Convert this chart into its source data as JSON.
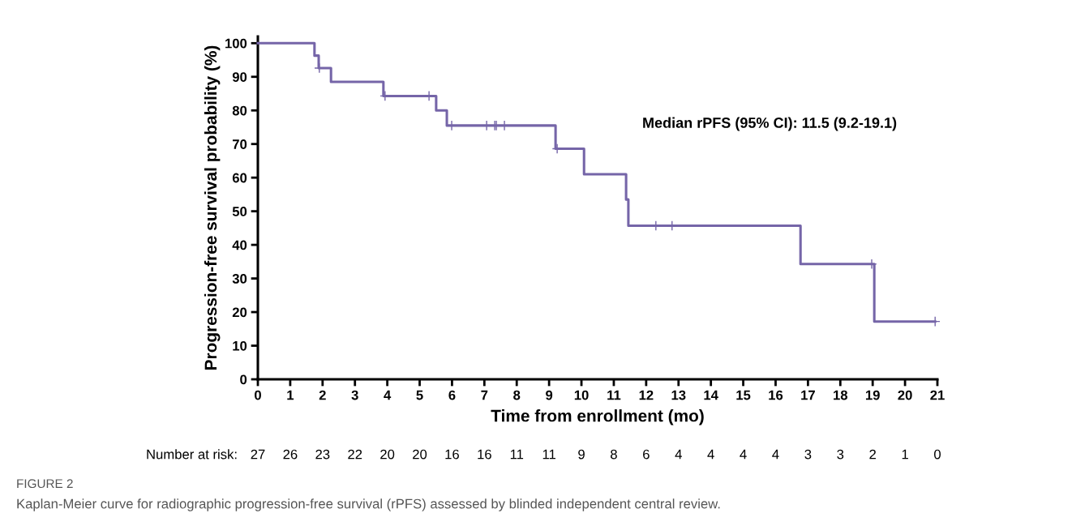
{
  "chart_data": {
    "type": "step",
    "xlabel": "Time from enrollment (mo)",
    "ylabel": "Progression-free survival probability (%)",
    "xlim": [
      0,
      21
    ],
    "xticks": [
      0,
      1,
      2,
      3,
      4,
      5,
      6,
      7,
      8,
      9,
      10,
      11,
      12,
      13,
      14,
      15,
      16,
      17,
      18,
      19,
      20,
      21
    ],
    "ylim": [
      0,
      102
    ],
    "yticks": [
      0,
      10,
      20,
      30,
      40,
      50,
      60,
      70,
      80,
      90,
      100
    ],
    "grid": false,
    "legend": false,
    "series": [
      {
        "color": "#7565a8",
        "marker": "none",
        "x": [
          0,
          1.75,
          1.88,
          2.26,
          3.88,
          5.51,
          5.84,
          9.2,
          10.08,
          11.38,
          11.45,
          16.77,
          19.05,
          20.93
        ],
        "values": [
          100,
          96.3,
          92.6,
          88.5,
          84.3,
          80,
          75.5,
          68.6,
          61,
          53.5,
          45.7,
          34.3,
          17.2,
          17.2
        ]
      },
      {
        "type": "scatter",
        "color": "#7565a8",
        "marker": "cross",
        "x": [
          1.9,
          3.93,
          5.29,
          5.99,
          7.07,
          7.32,
          7.37,
          7.62,
          9.25,
          12.3,
          12.8,
          18.97,
          20.93
        ],
        "values": [
          92.6,
          84.3,
          84.3,
          75.5,
          75.5,
          75.5,
          75.5,
          75.5,
          68.6,
          45.7,
          45.7,
          34.3,
          17.2
        ]
      }
    ],
    "annotations": [
      "Median rPFS (95% CI): 11.5 (9.2-19.1)",
      "Number at risk:",
      "27",
      "26",
      "23",
      "22",
      "20",
      "20",
      "16",
      "16",
      "11",
      "11",
      "9",
      "8",
      "6",
      "4",
      "4",
      "4",
      "4",
      "3",
      "3",
      "2",
      "1",
      "0",
      "FIGURE 2",
      "Kaplan-Meier curve for radiographic progression-free survival (rPFS) assessed by blinded independent central review."
    ]
  }
}
